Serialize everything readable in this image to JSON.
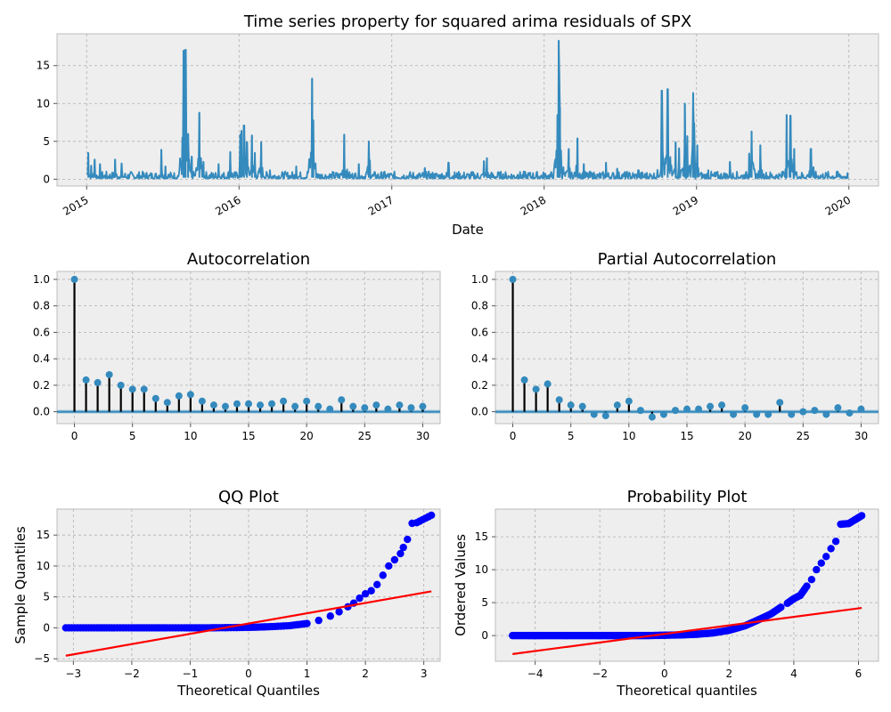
{
  "colors": {
    "series": "#348abd",
    "stem": "#000000",
    "qq_points": "#0000ff",
    "fit_line": "#ff0000",
    "axes_bg": "#eeeeee",
    "confidence_band": "#348abd"
  },
  "chart_data": [
    {
      "type": "line",
      "title": "Time series property for squared arima residuals of SPX",
      "xlabel": "Date",
      "ylabel": "",
      "x_ticks": [
        "2015",
        "2016",
        "2017",
        "2018",
        "2019",
        "2020"
      ],
      "y_ticks": [
        0,
        5,
        10,
        15
      ],
      "xlim": [
        "2014-10-22",
        "2020-03-12"
      ],
      "ylim": [
        -0.9,
        19.2
      ],
      "grid": true,
      "series": [
        {
          "name": "",
          "baseline": 0.4,
          "spikes": [
            [
              "2015-01-05",
              3.5
            ],
            [
              "2015-01-12",
              1.8
            ],
            [
              "2015-01-20",
              2.6
            ],
            [
              "2015-02-02",
              2.0
            ],
            [
              "2015-03-10",
              2.6
            ],
            [
              "2015-03-26",
              2.1
            ],
            [
              "2015-06-29",
              3.9
            ],
            [
              "2015-07-09",
              1.7
            ],
            [
              "2015-08-21",
              17.0
            ],
            [
              "2015-08-24",
              12.0
            ],
            [
              "2015-08-26",
              17.1
            ],
            [
              "2015-09-01",
              6.0
            ],
            [
              "2015-09-10",
              3.0
            ],
            [
              "2015-09-28",
              8.8
            ],
            [
              "2015-10-08",
              2.3
            ],
            [
              "2015-11-13",
              2.0
            ],
            [
              "2015-12-11",
              3.6
            ],
            [
              "2016-01-04",
              5.9
            ],
            [
              "2016-01-07",
              6.4
            ],
            [
              "2016-01-13",
              7.1
            ],
            [
              "2016-01-20",
              4.9
            ],
            [
              "2016-02-01",
              5.8
            ],
            [
              "2016-02-08",
              3.5
            ],
            [
              "2016-02-23",
              4.9
            ],
            [
              "2016-03-15",
              1.2
            ],
            [
              "2016-05-17",
              1.7
            ],
            [
              "2016-06-24",
              13.3
            ],
            [
              "2016-06-27",
              7.8
            ],
            [
              "2016-09-09",
              5.9
            ],
            [
              "2016-10-14",
              2.0
            ],
            [
              "2016-11-07",
              5.0
            ],
            [
              "2016-11-09",
              2.5
            ],
            [
              "2016-12-13",
              0.9
            ],
            [
              "2017-03-21",
              1.5
            ],
            [
              "2017-05-17",
              2.2
            ],
            [
              "2017-08-10",
              2.4
            ],
            [
              "2017-08-17",
              2.8
            ],
            [
              "2017-10-30",
              0.6
            ],
            [
              "2018-02-02",
              8.5
            ],
            [
              "2018-02-05",
              18.3
            ],
            [
              "2018-02-06",
              14.3
            ],
            [
              "2018-02-08",
              9.5
            ],
            [
              "2018-03-01",
              4.0
            ],
            [
              "2018-03-22",
              5.4
            ],
            [
              "2018-04-06",
              2.0
            ],
            [
              "2018-05-29",
              2.2
            ],
            [
              "2018-06-25",
              1.4
            ],
            [
              "2018-08-15",
              1.2
            ],
            [
              "2018-10-10",
              11.7
            ],
            [
              "2018-10-11",
              5.0
            ],
            [
              "2018-10-24",
              11.9
            ],
            [
              "2018-11-12",
              4.9
            ],
            [
              "2018-11-20",
              4.1
            ],
            [
              "2018-12-04",
              10.0
            ],
            [
              "2018-12-10",
              5.7
            ],
            [
              "2018-12-24",
              11.4
            ],
            [
              "2018-12-26",
              7.4
            ],
            [
              "2019-01-03",
              4.5
            ],
            [
              "2019-01-29",
              1.2
            ],
            [
              "2019-03-22",
              2.3
            ],
            [
              "2019-05-07",
              3.4
            ],
            [
              "2019-05-13",
              6.3
            ],
            [
              "2019-06-03",
              4.5
            ],
            [
              "2019-08-05",
              8.5
            ],
            [
              "2019-08-14",
              8.4
            ],
            [
              "2019-08-23",
              4.0
            ],
            [
              "2019-10-02",
              4.0
            ],
            [
              "2019-10-08",
              1.6
            ],
            [
              "2019-12-03",
              1.0
            ]
          ]
        }
      ]
    },
    {
      "type": "stem",
      "title": "Autocorrelation",
      "xlabel": "",
      "ylabel": "",
      "x_ticks": [
        0,
        5,
        10,
        15,
        20,
        25,
        30
      ],
      "y_ticks": [
        0.0,
        0.2,
        0.4,
        0.6,
        0.8,
        1.0
      ],
      "xlim": [
        -1.5,
        31.5
      ],
      "ylim": [
        -0.09,
        1.06
      ],
      "grid": true,
      "series": [
        {
          "name": "",
          "x": [
            0,
            1,
            2,
            3,
            4,
            5,
            6,
            7,
            8,
            9,
            10,
            11,
            12,
            13,
            14,
            15,
            16,
            17,
            18,
            19,
            20,
            21,
            22,
            23,
            24,
            25,
            26,
            27,
            28,
            29,
            30
          ],
          "values": [
            1.0,
            0.24,
            0.22,
            0.28,
            0.2,
            0.17,
            0.17,
            0.1,
            0.07,
            0.12,
            0.13,
            0.08,
            0.05,
            0.04,
            0.06,
            0.06,
            0.05,
            0.06,
            0.08,
            0.04,
            0.08,
            0.04,
            0.02,
            0.09,
            0.04,
            0.03,
            0.05,
            0.02,
            0.05,
            0.03,
            0.04
          ]
        }
      ],
      "confidence_band": 0.015
    },
    {
      "type": "stem",
      "title": "Partial Autocorrelation",
      "xlabel": "",
      "ylabel": "",
      "x_ticks": [
        0,
        5,
        10,
        15,
        20,
        25,
        30
      ],
      "y_ticks": [
        0.0,
        0.2,
        0.4,
        0.6,
        0.8,
        1.0
      ],
      "xlim": [
        -1.5,
        31.5
      ],
      "ylim": [
        -0.09,
        1.06
      ],
      "grid": true,
      "series": [
        {
          "name": "",
          "x": [
            0,
            1,
            2,
            3,
            4,
            5,
            6,
            7,
            8,
            9,
            10,
            11,
            12,
            13,
            14,
            15,
            16,
            17,
            18,
            19,
            20,
            21,
            22,
            23,
            24,
            25,
            26,
            27,
            28,
            29,
            30
          ],
          "values": [
            1.0,
            0.24,
            0.17,
            0.21,
            0.09,
            0.05,
            0.04,
            -0.02,
            -0.03,
            0.05,
            0.08,
            0.01,
            -0.04,
            -0.02,
            0.01,
            0.02,
            0.02,
            0.04,
            0.05,
            -0.02,
            0.03,
            -0.02,
            -0.02,
            0.07,
            -0.02,
            0.0,
            0.01,
            -0.02,
            0.03,
            -0.01,
            0.02
          ]
        }
      ],
      "confidence_band": 0.015
    },
    {
      "type": "scatter",
      "title": "QQ Plot",
      "xlabel": "Theoretical Quantiles",
      "ylabel": "Sample Quantiles",
      "x_ticks": [
        -3,
        -2,
        -1,
        0,
        1,
        2,
        3
      ],
      "y_ticks": [
        -5,
        0,
        5,
        10,
        15
      ],
      "xlim": [
        -3.28,
        3.28
      ],
      "ylim": [
        -5.4,
        19.2
      ],
      "grid": true,
      "series": [
        {
          "name": "",
          "x": [
            -3.13,
            -2.88,
            -2.6,
            -2.3,
            -2.0,
            -1.7,
            -1.4,
            -1.1,
            -0.8,
            -0.5,
            -0.2,
            0.1,
            0.4,
            0.7,
            1.0,
            1.2,
            1.4,
            1.55,
            1.7,
            1.8,
            1.9,
            2.0,
            2.1,
            2.2,
            2.3,
            2.4,
            2.5,
            2.6,
            2.65,
            2.72,
            2.8,
            2.88,
            3.13
          ],
          "values": [
            0.0,
            0.0,
            0.0,
            0.0,
            0.0,
            0.0,
            0.0,
            0.0,
            0.0,
            0.02,
            0.05,
            0.1,
            0.2,
            0.35,
            0.7,
            1.2,
            1.9,
            2.6,
            3.4,
            4.0,
            4.8,
            5.5,
            6.0,
            7.0,
            8.5,
            10.0,
            11.0,
            12.0,
            13.0,
            14.3,
            16.9,
            17.0,
            18.2
          ]
        },
        {
          "name": "",
          "x": [
            -3.13,
            3.13
          ],
          "values": [
            -4.5,
            5.9
          ]
        }
      ]
    },
    {
      "type": "scatter",
      "title": "Probability Plot",
      "xlabel": "Theoretical quantiles",
      "ylabel": "Ordered Values",
      "x_ticks": [
        -4,
        -2,
        0,
        2,
        4,
        6
      ],
      "y_ticks": [
        0,
        5,
        10,
        15
      ],
      "xlim": [
        -5.23,
        6.62
      ],
      "ylim": [
        -3.9,
        19.2
      ],
      "grid": true,
      "series": [
        {
          "name": "",
          "x": [
            -4.7,
            -4.2,
            -3.8,
            -3.4,
            -3.0,
            -2.5,
            -2.0,
            -1.5,
            -1.0,
            -0.5,
            0.0,
            0.5,
            1.0,
            1.5,
            2.0,
            2.5,
            3.0,
            3.3,
            3.6,
            3.8,
            4.0,
            4.2,
            4.4,
            4.55,
            4.7,
            4.85,
            5.0,
            5.15,
            5.3,
            5.45,
            5.7,
            6.1
          ],
          "values": [
            0.0,
            0.0,
            0.0,
            0.0,
            0.0,
            0.0,
            0.0,
            0.0,
            0.0,
            0.0,
            0.05,
            0.1,
            0.2,
            0.4,
            0.8,
            1.5,
            2.6,
            3.3,
            4.3,
            4.9,
            5.6,
            6.1,
            7.5,
            8.5,
            10.0,
            11.0,
            12.0,
            13.2,
            14.3,
            16.9,
            17.0,
            18.2
          ]
        },
        {
          "name": "",
          "x": [
            -4.7,
            6.1
          ],
          "values": [
            -2.8,
            4.2
          ]
        }
      ]
    }
  ]
}
